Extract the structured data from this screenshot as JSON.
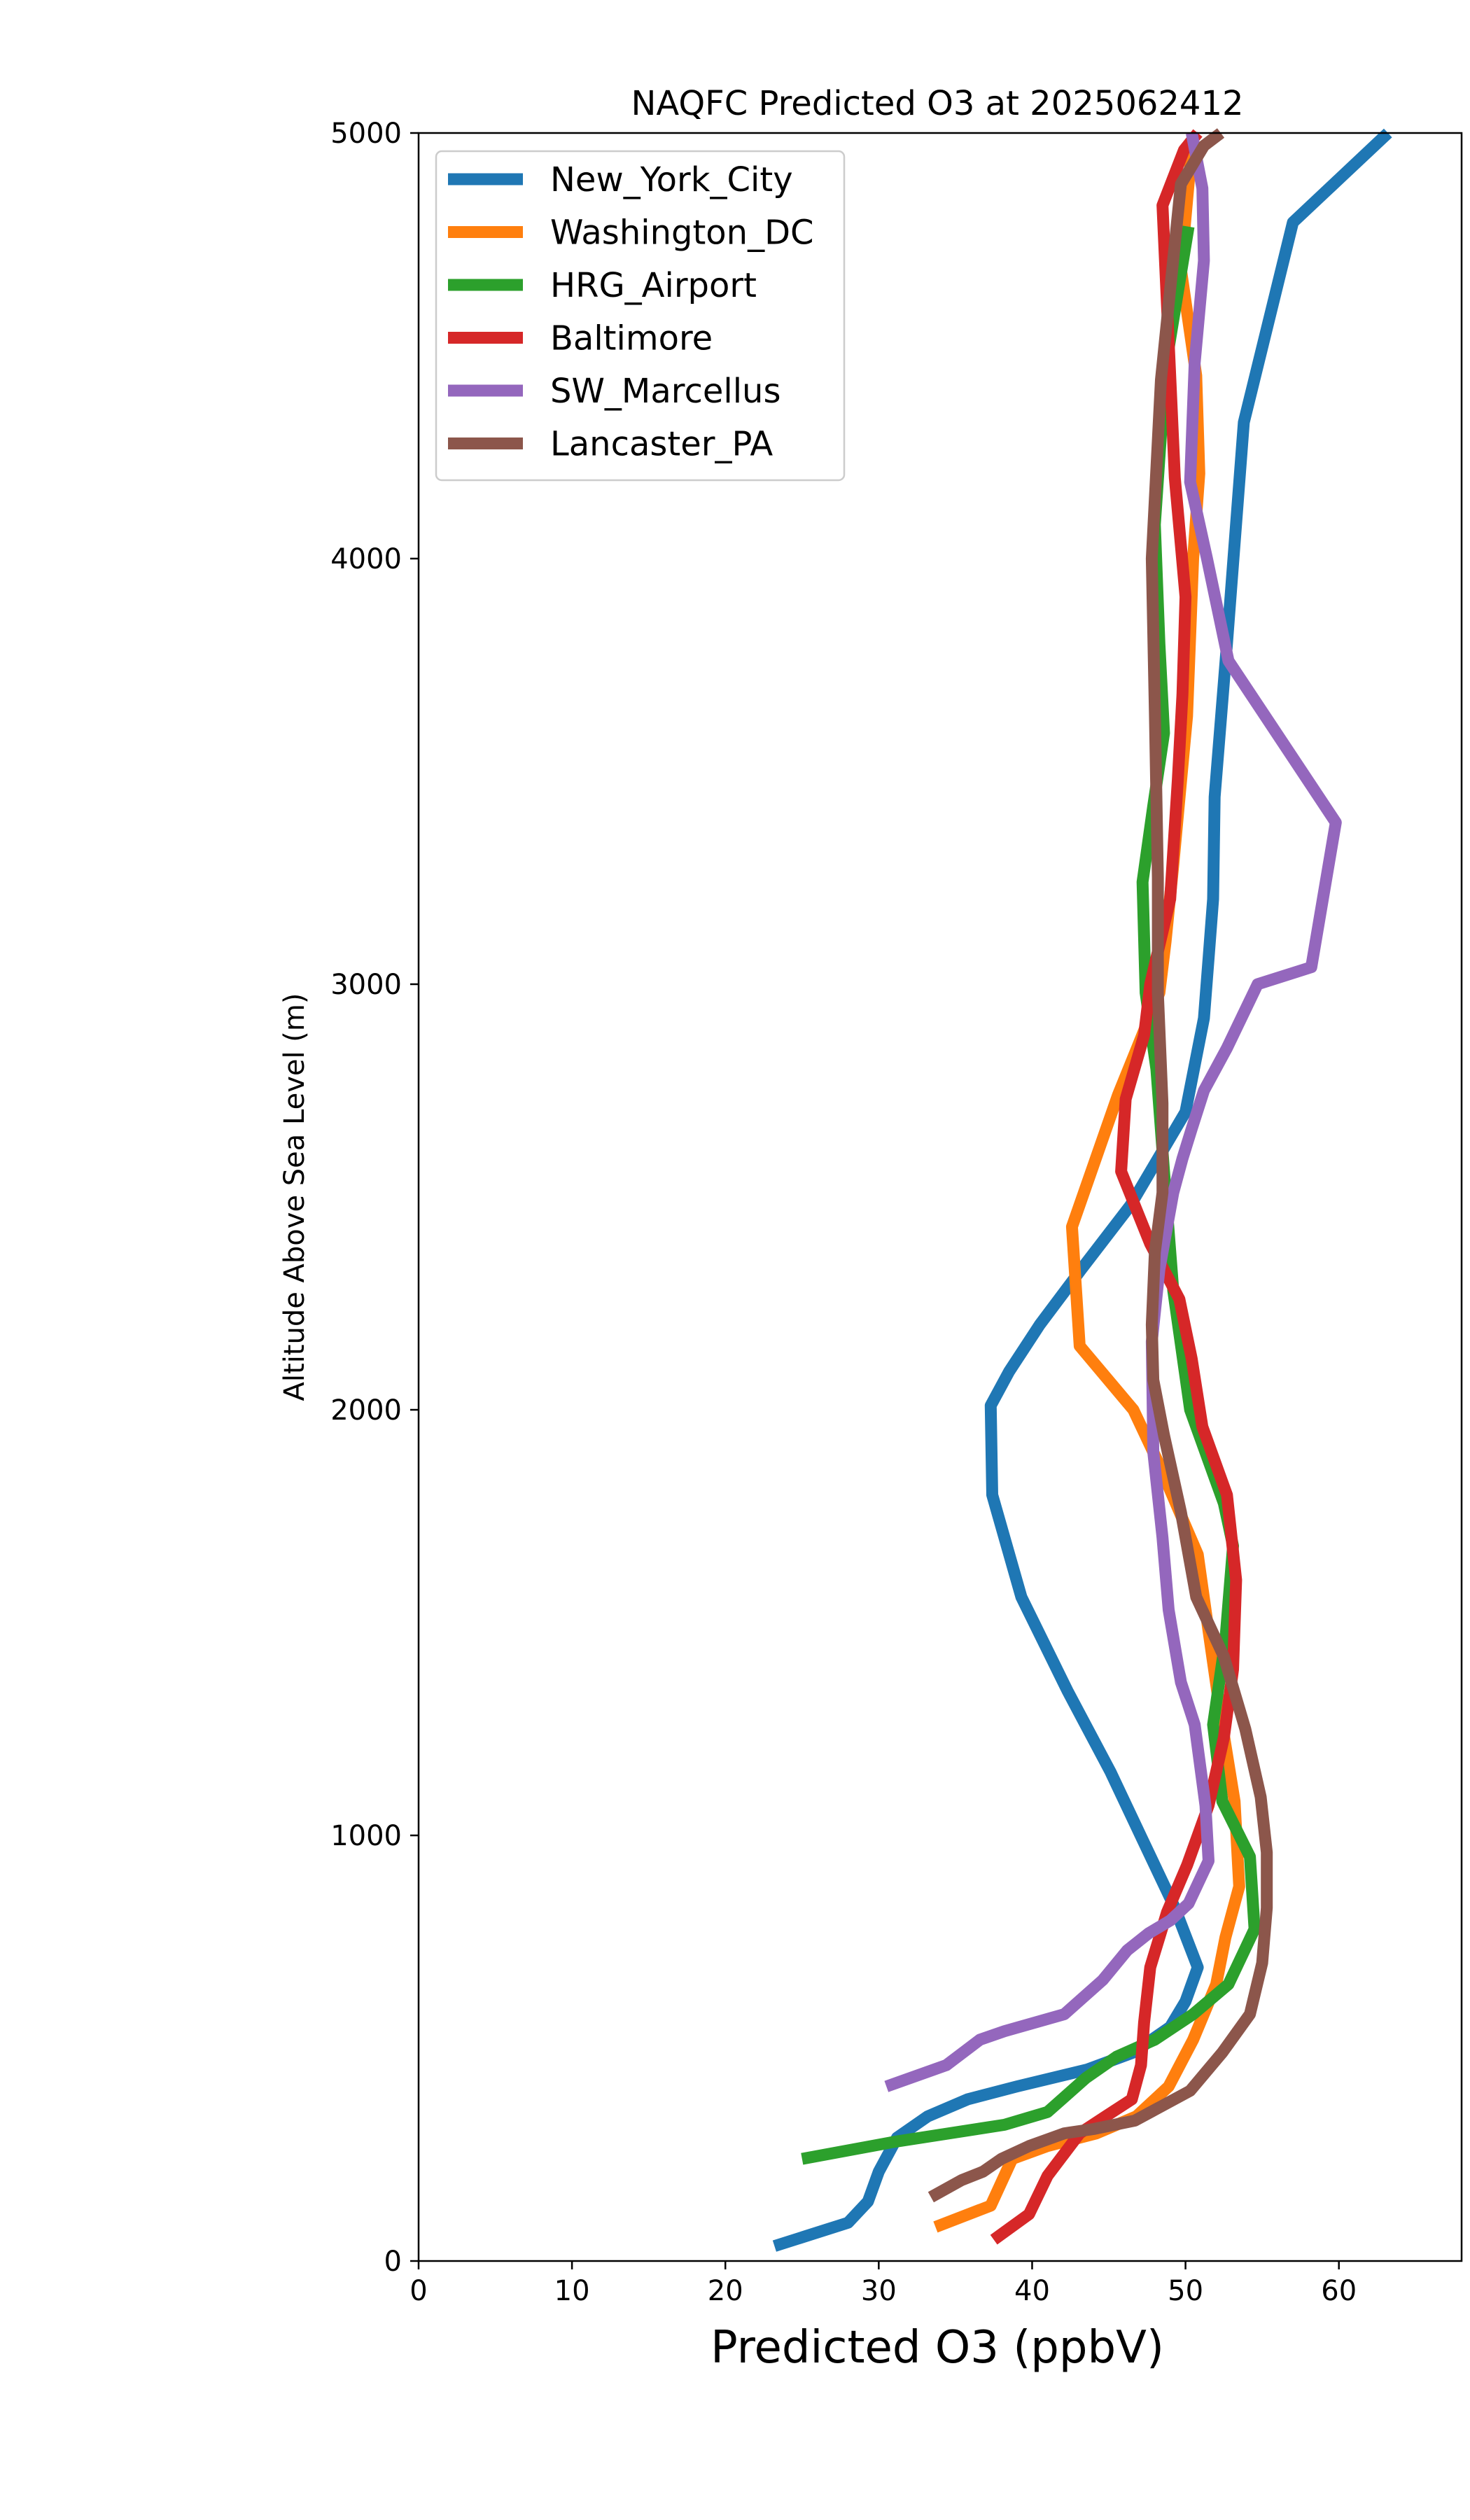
{
  "chart_data": {
    "type": "line",
    "title": "NAQFC Predicted O3 at 2025062412",
    "xlabel": "Predicted O3 (ppbV)",
    "ylabel": "Altitude Above Sea Level (m)",
    "xlim": [
      0,
      68
    ],
    "ylim": [
      0,
      5000
    ],
    "x_ticks": [
      "0",
      "10",
      "20",
      "30",
      "40",
      "50",
      "60"
    ],
    "y_ticks": [
      "0",
      "1000",
      "2000",
      "3000",
      "4000",
      "5000"
    ],
    "grid": false,
    "legend_position": "upper-left",
    "series": [
      {
        "name": "New_York_City",
        "color": "#1f77b4",
        "x": [
          23.2,
          28.0,
          29.3,
          30.0,
          31.2,
          33.2,
          35.8,
          39.0,
          43.6,
          46.6,
          49.0,
          50.0,
          50.8,
          49.3,
          47.2,
          45.1,
          42.3,
          39.3,
          37.4,
          37.3,
          38.5,
          40.5,
          43.2,
          46.4,
          50.0,
          51.2,
          51.5,
          51.8,
          51.9,
          52.7,
          53.8,
          57.0,
          63.2
        ],
        "y": [
          35,
          90,
          140,
          210,
          290,
          340,
          380,
          410,
          450,
          490,
          550,
          610,
          690,
          830,
          990,
          1150,
          1340,
          1560,
          1800,
          2010,
          2090,
          2200,
          2330,
          2480,
          2700,
          2920,
          3060,
          3200,
          3440,
          3800,
          4320,
          4790,
          5000
        ]
      },
      {
        "name": "Washington_DC",
        "color": "#ff7f0e",
        "x": [
          33.7,
          37.3,
          38.7,
          41.0,
          44.2,
          46.8,
          48.9,
          50.5,
          52.0,
          52.6,
          53.5,
          53.2,
          52.3,
          51.5,
          50.8,
          48.3,
          46.6,
          43.1,
          42.6,
          45.6,
          48.3,
          48.7,
          49.2,
          50.1,
          50.5,
          50.9,
          50.7,
          49.7,
          50.5
        ],
        "y": [
          80,
          130,
          240,
          270,
          300,
          340,
          410,
          520,
          650,
          760,
          880,
          1080,
          1280,
          1480,
          1660,
          1870,
          2000,
          2150,
          2430,
          2740,
          2980,
          3100,
          3280,
          3630,
          4000,
          4200,
          4430,
          4680,
          5000
        ]
      },
      {
        "name": "HRG_Airport",
        "color": "#2ca02c",
        "x": [
          25.0,
          31.0,
          38.2,
          41.0,
          43.5,
          45.5,
          48.0,
          50.5,
          52.8,
          54.5,
          54.2,
          52.4,
          51.8,
          52.6,
          53.1,
          52.5,
          50.3,
          49.2,
          48.6,
          48.1,
          47.4,
          47.2,
          47.9,
          48.6,
          48.3,
          48.0,
          48.7,
          50.2
        ],
        "y": [
          240,
          280,
          320,
          350,
          430,
          480,
          520,
          580,
          650,
          780,
          950,
          1080,
          1260,
          1460,
          1680,
          1780,
          2000,
          2280,
          2560,
          2800,
          2980,
          3240,
          3420,
          3590,
          3800,
          4080,
          4450,
          4780
        ]
      },
      {
        "name": "Baltimore",
        "color": "#d62728",
        "x": [
          37.5,
          39.8,
          41.0,
          43.1,
          44.8,
          46.5,
          47.1,
          47.3,
          47.7,
          48.8,
          50.1,
          51.5,
          52.5,
          53.1,
          53.3,
          52.7,
          51.1,
          50.4,
          49.6,
          47.7,
          45.8,
          46.1,
          47.3,
          47.7,
          49.0,
          49.5,
          49.8,
          50.0,
          49.3,
          48.5,
          49.9,
          50.8
        ],
        "y": [
          50,
          110,
          200,
          300,
          340,
          380,
          460,
          560,
          690,
          820,
          930,
          1070,
          1230,
          1390,
          1600,
          1800,
          1960,
          2120,
          2260,
          2390,
          2560,
          2730,
          2880,
          3000,
          3200,
          3480,
          3680,
          3910,
          4190,
          4830,
          4960,
          5000
        ]
      },
      {
        "name": "SW_Marcellus",
        "color": "#9467bd",
        "x": [
          30.5,
          34.4,
          36.6,
          38.2,
          42.1,
          44.6,
          46.2,
          47.6,
          49.0,
          50.2,
          51.5,
          51.3,
          50.6,
          49.7,
          48.9,
          48.5,
          47.9,
          47.8,
          48.3,
          49.2,
          49.8,
          50.4,
          51.2,
          52.7,
          54.7,
          58.2,
          59.8,
          52.8,
          51.4,
          50.3,
          50.6,
          51.2,
          51.1,
          50.4
        ],
        "y": [
          410,
          460,
          520,
          540,
          580,
          660,
          730,
          770,
          800,
          840,
          940,
          1070,
          1260,
          1360,
          1530,
          1700,
          1900,
          2160,
          2330,
          2510,
          2590,
          2660,
          2750,
          2850,
          3000,
          3040,
          3380,
          3760,
          4000,
          4180,
          4460,
          4700,
          4870,
          5000
        ]
      },
      {
        "name": "Lancaster_PA",
        "color": "#8c564b",
        "x": [
          33.4,
          35.4,
          36.8,
          38.0,
          39.8,
          42.1,
          44.0,
          46.7,
          50.3,
          52.4,
          54.2,
          55.0,
          55.3,
          55.3,
          54.9,
          53.9,
          52.5,
          50.7,
          49.7,
          48.6,
          47.9,
          47.8,
          48.0,
          48.5,
          48.5,
          48.2,
          48.2,
          48.0,
          47.8,
          48.4,
          49.7,
          51.2,
          52.3
        ],
        "y": [
          150,
          190,
          210,
          240,
          270,
          300,
          310,
          330,
          400,
          490,
          580,
          700,
          830,
          960,
          1090,
          1250,
          1420,
          1560,
          1760,
          1940,
          2070,
          2200,
          2370,
          2510,
          2720,
          2980,
          3250,
          3640,
          4000,
          4420,
          4880,
          4970,
          5000
        ]
      }
    ]
  }
}
